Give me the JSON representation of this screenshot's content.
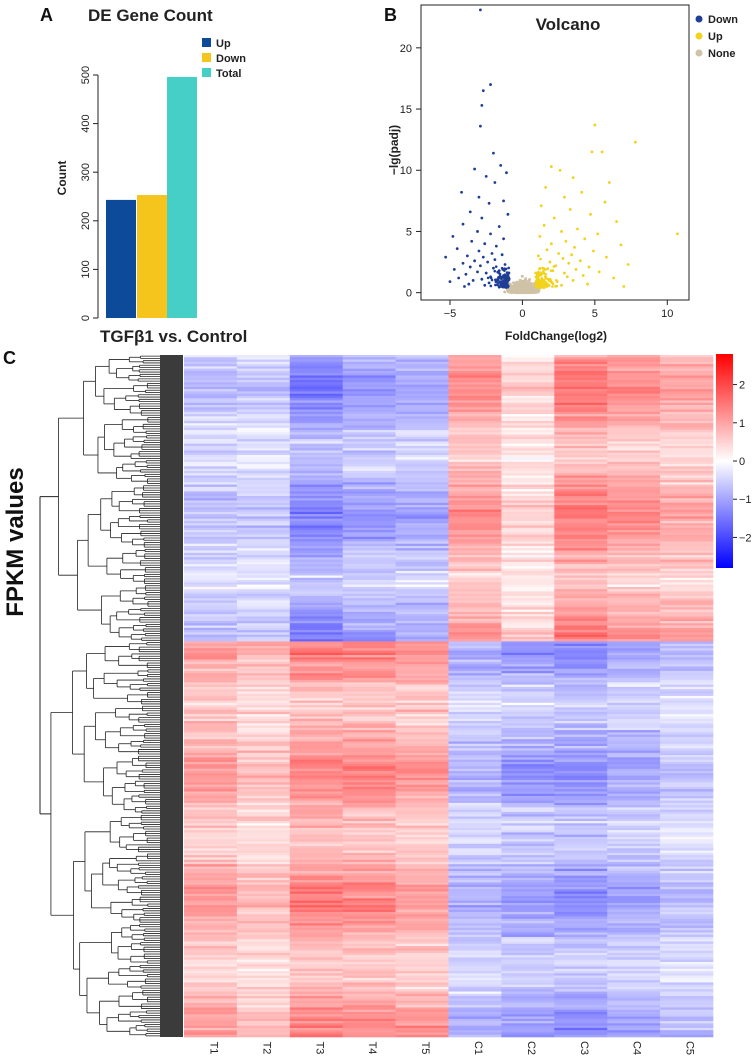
{
  "panels": {
    "a": "A",
    "b": "B",
    "c": "C"
  },
  "chart_data": [
    {
      "type": "bar",
      "title": "DE Gene Count",
      "xlabel": "TGFβ1 vs. Control",
      "ylabel": "Count",
      "ylim": [
        0,
        500
      ],
      "yticks": [
        0,
        100,
        200,
        300,
        400,
        500
      ],
      "categories": [
        "Up",
        "Down",
        "Total"
      ],
      "values": [
        243,
        253,
        496
      ],
      "colors": [
        "#0d4a9a",
        "#f5c51d",
        "#45cfc6"
      ],
      "legend": [
        "Up",
        "Down",
        "Total"
      ],
      "legend_position": "top-right"
    },
    {
      "type": "scatter",
      "title": "Volcano",
      "xlabel": "FoldChange(log2)",
      "ylabel": "−lg(padj)",
      "xlim": [
        -7,
        11.5
      ],
      "ylim": [
        -0.6,
        23.5
      ],
      "xticks": [
        -5,
        0,
        5,
        10
      ],
      "yticks": [
        0,
        5,
        10,
        15,
        20
      ],
      "series": [
        {
          "name": "Down",
          "color": "#1f3e95",
          "points": [
            [
              -2.9,
              23.1
            ],
            [
              -2.2,
              17.0
            ],
            [
              -2.7,
              16.5
            ],
            [
              -2.8,
              15.3
            ],
            [
              -2.9,
              13.6
            ],
            [
              -2.0,
              11.4
            ],
            [
              -1.5,
              10.4
            ],
            [
              -3.3,
              10.1
            ],
            [
              -1.1,
              9.8
            ],
            [
              -2.5,
              9.5
            ],
            [
              -1.9,
              9.0
            ],
            [
              -4.2,
              8.2
            ],
            [
              -3.0,
              7.8
            ],
            [
              -1.3,
              7.5
            ],
            [
              -2.3,
              7.3
            ],
            [
              -3.6,
              6.6
            ],
            [
              -1.0,
              6.4
            ],
            [
              -2.8,
              6.1
            ],
            [
              -4.1,
              5.6
            ],
            [
              -1.6,
              5.4
            ],
            [
              -3.1,
              5.0
            ],
            [
              -2.2,
              4.8
            ],
            [
              -4.8,
              4.6
            ],
            [
              -1.3,
              4.4
            ],
            [
              -3.5,
              4.2
            ],
            [
              -2.6,
              4.0
            ],
            [
              -1.8,
              3.8
            ],
            [
              -4.5,
              3.6
            ],
            [
              -3.0,
              3.4
            ],
            [
              -2.1,
              3.2
            ],
            [
              -1.4,
              3.1
            ],
            [
              -3.8,
              3.0
            ],
            [
              -2.7,
              2.9
            ],
            [
              -5.3,
              2.9
            ],
            [
              -1.9,
              2.7
            ],
            [
              -3.3,
              2.6
            ],
            [
              -2.4,
              2.5
            ],
            [
              -4.1,
              2.4
            ],
            [
              -1.2,
              2.3
            ],
            [
              -2.9,
              2.2
            ],
            [
              -3.6,
              2.1
            ],
            [
              -2.0,
              2.0
            ],
            [
              -4.7,
              1.9
            ],
            [
              -1.6,
              1.8
            ],
            [
              -3.1,
              1.7
            ],
            [
              -2.5,
              1.6
            ],
            [
              -3.9,
              1.5
            ],
            [
              -1.3,
              1.4
            ],
            [
              -2.2,
              1.3
            ],
            [
              -4.4,
              1.2
            ],
            [
              -2.8,
              1.1
            ],
            [
              -3.4,
              1.0
            ],
            [
              -1.8,
              0.9
            ],
            [
              -5.0,
              0.9
            ],
            [
              -2.3,
              0.8
            ],
            [
              -3.7,
              0.7
            ],
            [
              -1.5,
              0.7
            ],
            [
              -2.6,
              0.6
            ],
            [
              -4.0,
              0.5
            ],
            [
              -1.1,
              0.5
            ]
          ]
        },
        {
          "name": "Up",
          "color": "#f2d21b",
          "points": [
            [
              5.0,
              13.7
            ],
            [
              7.8,
              12.3
            ],
            [
              5.5,
              11.5
            ],
            [
              4.8,
              11.5
            ],
            [
              2.0,
              10.3
            ],
            [
              2.6,
              10.0
            ],
            [
              3.5,
              9.4
            ],
            [
              6.0,
              9.0
            ],
            [
              1.6,
              8.6
            ],
            [
              4.1,
              8.2
            ],
            [
              2.9,
              7.8
            ],
            [
              5.7,
              7.4
            ],
            [
              1.3,
              7.1
            ],
            [
              3.3,
              6.8
            ],
            [
              4.7,
              6.4
            ],
            [
              2.2,
              6.1
            ],
            [
              6.5,
              5.8
            ],
            [
              1.5,
              5.5
            ],
            [
              3.8,
              5.2
            ],
            [
              2.7,
              5.0
            ],
            [
              5.2,
              4.8
            ],
            [
              10.7,
              4.8
            ],
            [
              1.2,
              4.6
            ],
            [
              4.3,
              4.4
            ],
            [
              3.0,
              4.2
            ],
            [
              2.0,
              4.0
            ],
            [
              6.8,
              3.9
            ],
            [
              3.6,
              3.7
            ],
            [
              1.7,
              3.5
            ],
            [
              4.9,
              3.4
            ],
            [
              2.5,
              3.2
            ],
            [
              3.4,
              3.1
            ],
            [
              1.1,
              3.0
            ],
            [
              5.8,
              2.9
            ],
            [
              2.8,
              2.8
            ],
            [
              4.0,
              2.6
            ],
            [
              1.9,
              2.5
            ],
            [
              3.2,
              2.4
            ],
            [
              7.3,
              2.3
            ],
            [
              2.3,
              2.2
            ],
            [
              4.6,
              2.1
            ],
            [
              1.4,
              2.0
            ],
            [
              3.7,
              1.9
            ],
            [
              2.1,
              1.8
            ],
            [
              5.3,
              1.7
            ],
            [
              2.9,
              1.6
            ],
            [
              1.6,
              1.5
            ],
            [
              4.2,
              1.4
            ],
            [
              3.1,
              1.3
            ],
            [
              6.3,
              1.2
            ],
            [
              1.9,
              1.1
            ],
            [
              3.5,
              1.0
            ],
            [
              2.4,
              0.9
            ],
            [
              1.2,
              0.8
            ],
            [
              4.5,
              0.7
            ],
            [
              2.7,
              0.6
            ],
            [
              7.0,
              0.5
            ],
            [
              1.5,
              0.5
            ]
          ]
        },
        {
          "name": "None",
          "color": "#cfc2a6",
          "cloud": "dense cloud centred on x = 0, y from 0 to about 2.5"
        }
      ],
      "legend": [
        "Down",
        "Up",
        "None"
      ],
      "legend_position": "top-right"
    },
    {
      "type": "heatmap",
      "ylabel": "FPKM values",
      "columns": [
        "T1",
        "T2",
        "T3",
        "T4",
        "T5",
        "C1",
        "C2",
        "C3",
        "C4",
        "C5"
      ],
      "rows": 300,
      "color_scale": {
        "min": -2.8,
        "max": 2.8,
        "low": "#0000ff",
        "mid": "#ffffff",
        "high": "#ff0000"
      },
      "colorbar_ticks": [
        2,
        1,
        0,
        -1,
        -2
      ],
      "colorbar_labels": [
        "2",
        "1",
        "0",
        "−1",
        "−2"
      ],
      "dendrogram": "left",
      "clusters": [
        {
          "name": "upper",
          "rows": 126,
          "column_means": [
            -0.6,
            -0.5,
            -1.2,
            -0.9,
            -0.8,
            1.0,
            0.4,
            1.2,
            1.0,
            0.8
          ]
        },
        {
          "name": "lower",
          "rows": 174,
          "column_means": [
            0.9,
            0.6,
            1.1,
            1.1,
            0.9,
            -0.7,
            -0.9,
            -1.0,
            -0.8,
            -0.6
          ]
        }
      ]
    }
  ]
}
